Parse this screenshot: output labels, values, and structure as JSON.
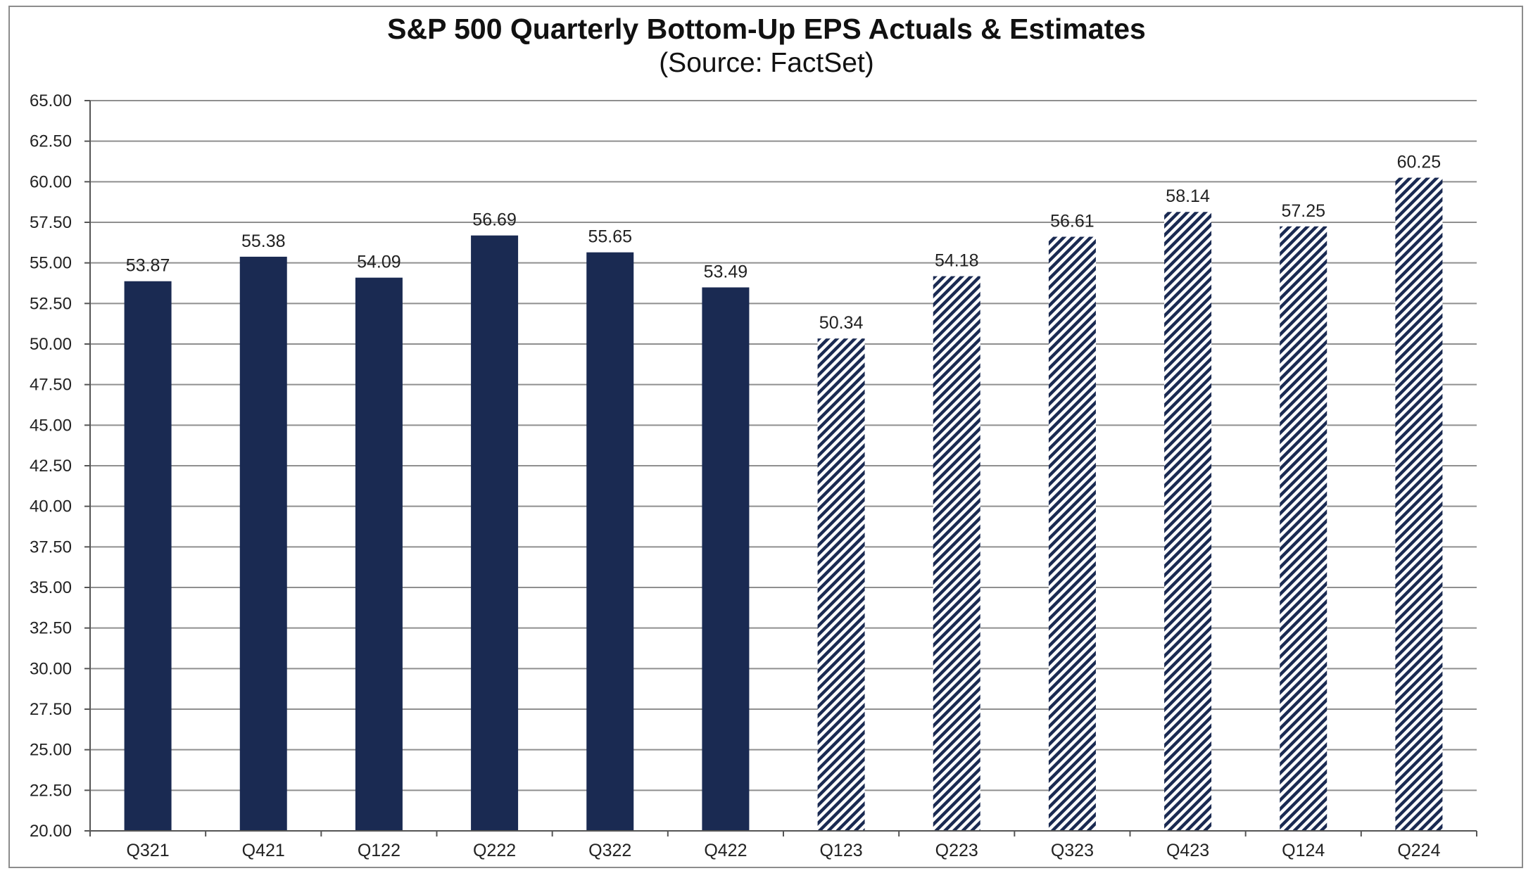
{
  "chart_data": {
    "type": "bar",
    "title": "S&P 500 Quarterly Bottom-Up EPS Actuals & Estimates",
    "subtitle": "(Source: FactSet)",
    "categories": [
      "Q321",
      "Q421",
      "Q122",
      "Q222",
      "Q322",
      "Q422",
      "Q123",
      "Q223",
      "Q323",
      "Q423",
      "Q124",
      "Q224"
    ],
    "values": [
      53.87,
      55.38,
      54.09,
      56.69,
      55.65,
      53.49,
      50.34,
      54.18,
      56.61,
      58.14,
      57.25,
      60.25
    ],
    "value_labels": [
      "53.87",
      "55.38",
      "54.09",
      "56.69",
      "55.65",
      "53.49",
      "50.34",
      "54.18",
      "56.61",
      "58.14",
      "57.25",
      "60.25"
    ],
    "bar_style": [
      "solid",
      "solid",
      "solid",
      "solid",
      "solid",
      "solid",
      "hatched",
      "hatched",
      "hatched",
      "hatched",
      "hatched",
      "hatched"
    ],
    "ylim": [
      20,
      65
    ],
    "yticks": [
      "20.00",
      "22.50",
      "25.00",
      "27.50",
      "30.00",
      "32.50",
      "35.00",
      "37.50",
      "40.00",
      "42.50",
      "45.00",
      "47.50",
      "50.00",
      "52.50",
      "55.00",
      "57.50",
      "60.00",
      "62.50",
      "65.00"
    ],
    "grid": true,
    "colors": {
      "bar": "#1a2a52",
      "grid": "#8f8f8f",
      "axis": "#555555"
    }
  }
}
